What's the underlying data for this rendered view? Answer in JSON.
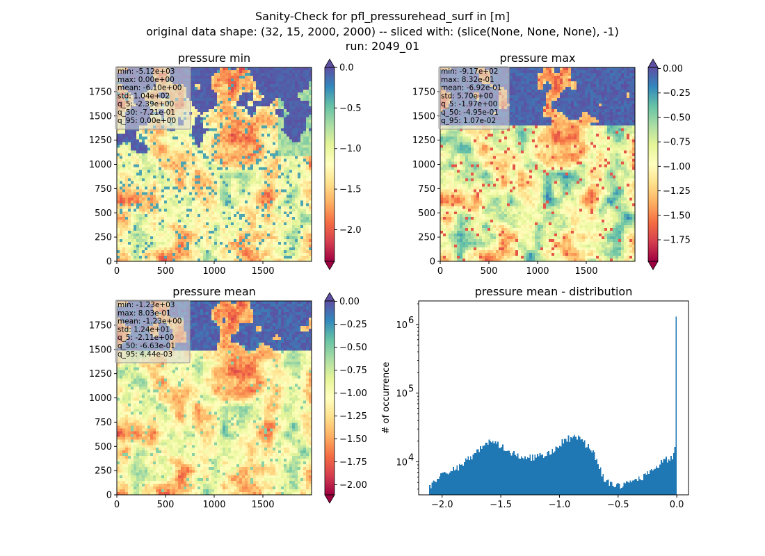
{
  "figure": {
    "title_lines": [
      "Sanity-Check for pfl_pressurehead_surf in [m]",
      "original data shape: (32, 15, 2000, 2000) -- sliced with: (slice(None, None, None), -1)",
      "run: 2049_01"
    ]
  },
  "chart_data": [
    {
      "type": "heatmap",
      "title": "pressure min",
      "xlim": [
        0,
        2000
      ],
      "ylim": [
        0,
        2000
      ],
      "x_ticks": [
        0,
        500,
        1000,
        1500
      ],
      "y_ticks": [
        0,
        250,
        500,
        750,
        1000,
        1250,
        1500,
        1750
      ],
      "colorbar": {
        "min": -2.39,
        "max": 0.0,
        "ticks": [
          "0.0",
          "-0.5",
          "-1.0",
          "-1.5",
          "-2.0"
        ],
        "tick_values": [
          0.0,
          -0.5,
          -1.0,
          -1.5,
          -2.0
        ],
        "extend": "both",
        "cmap": "Spectral"
      },
      "stats": [
        "min: -5.12e+03",
        "max: 0.00e+00",
        "mean: -6.10e+00",
        "std: 1.04e+02",
        "q_5: -2.39e+00",
        "q_50: -7.21e-01",
        "q_95: 0.00e+00"
      ]
    },
    {
      "type": "heatmap",
      "title": "pressure max",
      "xlim": [
        0,
        2000
      ],
      "ylim": [
        0,
        2000
      ],
      "x_ticks": [
        0,
        500,
        1000,
        1500
      ],
      "y_ticks": [
        0,
        250,
        500,
        750,
        1000,
        1250,
        1500,
        1750
      ],
      "colorbar": {
        "min": -1.97,
        "max": 0.0107,
        "ticks": [
          "0.00",
          "-0.25",
          "-0.50",
          "-0.75",
          "-1.00",
          "-1.25",
          "-1.50",
          "-1.75"
        ],
        "tick_values": [
          0.0,
          -0.25,
          -0.5,
          -0.75,
          -1.0,
          -1.25,
          -1.5,
          -1.75
        ],
        "extend": "both",
        "cmap": "Spectral"
      },
      "stats": [
        "min: -9.17e+02",
        "max: 8.32e-01",
        "mean: -6.92e-01",
        "std: 5.70e+00",
        "q_5: -1.97e+00",
        "q_50: -4.95e-01",
        "q_95: 1.07e-02"
      ]
    },
    {
      "type": "heatmap",
      "title": "pressure mean",
      "xlim": [
        0,
        2000
      ],
      "ylim": [
        0,
        2000
      ],
      "x_ticks": [
        0,
        500,
        1000,
        1500
      ],
      "y_ticks": [
        0,
        250,
        500,
        750,
        1000,
        1250,
        1500,
        1750
      ],
      "colorbar": {
        "min": -2.11,
        "max": 0.00444,
        "ticks": [
          "0.00",
          "-0.25",
          "-0.50",
          "-0.75",
          "-1.00",
          "-1.25",
          "-1.50",
          "-1.75",
          "-2.00"
        ],
        "tick_values": [
          0.0,
          -0.25,
          -0.5,
          -0.75,
          -1.0,
          -1.25,
          -1.5,
          -1.75,
          -2.0
        ],
        "extend": "both",
        "cmap": "Spectral"
      },
      "stats": [
        "min: -1.23e+03",
        "max: 8.03e-01",
        "mean: -1.23e+00",
        "std: 1.24e+01",
        "q_5: -2.11e+00",
        "q_50: -6.63e-01",
        "q_95: 4.44e-03"
      ]
    },
    {
      "type": "histogram",
      "title": "pressure mean - distribution",
      "ylabel": "# of occurrence",
      "xlim": [
        -2.2,
        0.1
      ],
      "ylim": [
        3300,
        2200000
      ],
      "y_scale": "log",
      "x_ticks": [
        -2.0,
        -1.5,
        -1.0,
        -0.5,
        0.0
      ],
      "x_tick_labels": [
        "−2.0",
        "−1.5",
        "−1.0",
        "−0.5",
        "0.0"
      ],
      "y_ticks": [
        10000,
        100000,
        1000000
      ],
      "y_tick_labels": [
        "10",
        "10",
        "10"
      ],
      "y_tick_exponents": [
        "4",
        "5",
        "6"
      ],
      "bar_color": "#1f77b4",
      "bin_range": [
        -2.11,
        0.0
      ],
      "bin_count": 200,
      "profile": [
        [
          -2.11,
          4200
        ],
        [
          -2.05,
          5800
        ],
        [
          -1.95,
          6800
        ],
        [
          -1.85,
          8500
        ],
        [
          -1.75,
          12000
        ],
        [
          -1.65,
          17500
        ],
        [
          -1.58,
          19500
        ],
        [
          -1.5,
          17000
        ],
        [
          -1.4,
          13500
        ],
        [
          -1.3,
          12000
        ],
        [
          -1.2,
          11500
        ],
        [
          -1.1,
          13000
        ],
        [
          -1.02,
          16500
        ],
        [
          -0.95,
          21000
        ],
        [
          -0.88,
          23000
        ],
        [
          -0.82,
          21500
        ],
        [
          -0.78,
          18000
        ],
        [
          -0.72,
          15000
        ],
        [
          -0.67,
          10000
        ],
        [
          -0.63,
          6200
        ],
        [
          -0.58,
          4800
        ],
        [
          -0.52,
          4500
        ],
        [
          -0.45,
          4700
        ],
        [
          -0.38,
          5300
        ],
        [
          -0.3,
          6000
        ],
        [
          -0.22,
          7000
        ],
        [
          -0.15,
          9000
        ],
        [
          -0.08,
          11000
        ],
        [
          -0.03,
          12500
        ],
        [
          -0.01,
          17000
        ],
        [
          0.0,
          26000
        ]
      ],
      "spike": {
        "x": 0.0,
        "count": 1300000
      }
    }
  ]
}
